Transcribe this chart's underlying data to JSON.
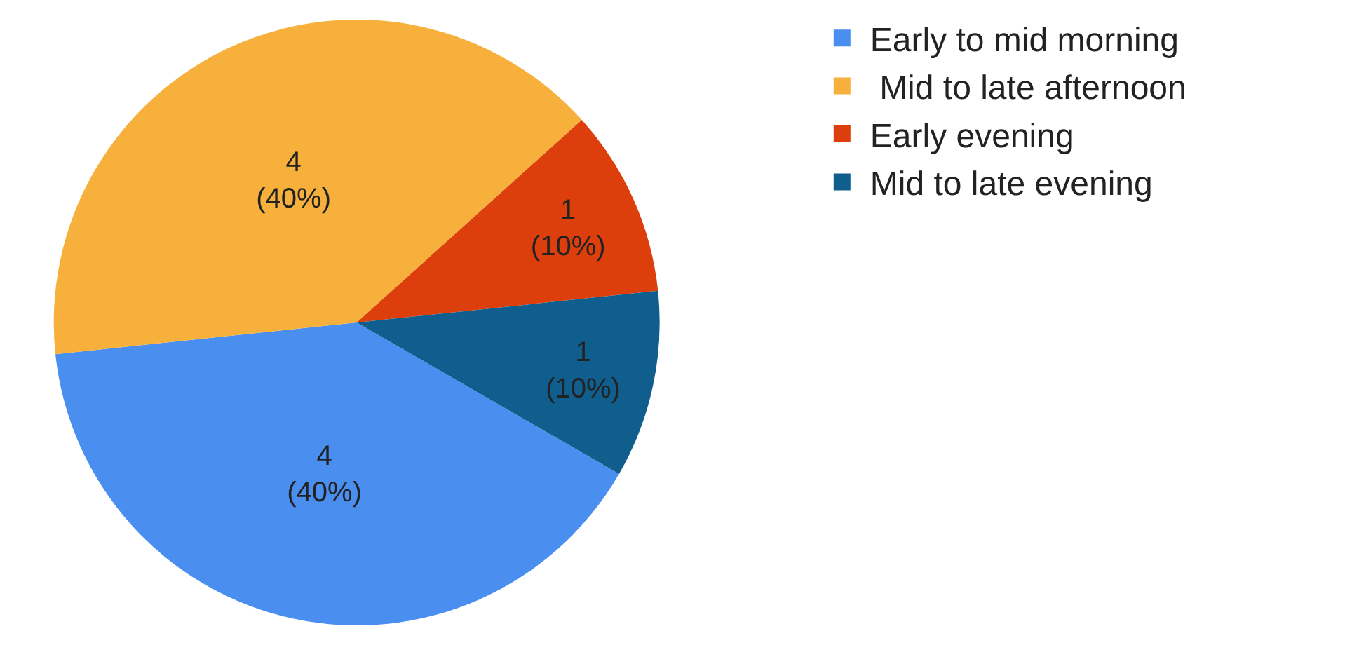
{
  "chart_data": {
    "type": "pie",
    "categories": [
      "Early to mid morning",
      " Mid to late afternoon",
      "Early evening",
      "Mid to late evening"
    ],
    "values": [
      4,
      4,
      1,
      1
    ],
    "colors": [
      "#4a8ef0",
      "#f7b03c",
      "#dc3f0c",
      "#0f5e8e"
    ],
    "value_labels": [
      "4\n(40%)",
      "4\n(40%)",
      "1\n(10%)",
      "1\n(10%)"
    ],
    "legend": "top right"
  }
}
